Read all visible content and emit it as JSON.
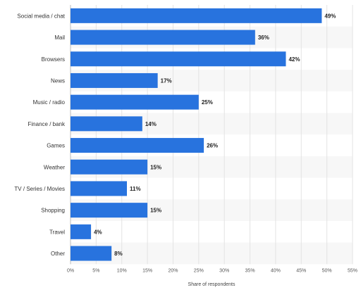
{
  "chart_data": {
    "type": "bar",
    "orientation": "horizontal",
    "categories": [
      "Social media / chat",
      "Mail",
      "Browsers",
      "News",
      "Music / radio",
      "Finance / bank",
      "Games",
      "Weather",
      "TV / Series / Movies",
      "Shopping",
      "Travel",
      "Other"
    ],
    "values": [
      49,
      36,
      42,
      17,
      25,
      14,
      26,
      15,
      11,
      15,
      4,
      8
    ],
    "value_labels": [
      "49%",
      "36%",
      "42%",
      "17%",
      "25%",
      "14%",
      "26%",
      "15%",
      "11%",
      "15%",
      "4%",
      "8%"
    ],
    "xlabel": "Share of respondents",
    "xlim": [
      0,
      55
    ],
    "xticks": [
      0,
      5,
      10,
      15,
      20,
      25,
      30,
      35,
      40,
      45,
      50,
      55
    ],
    "xtick_labels": [
      "0%",
      "5%",
      "10%",
      "15%",
      "20%",
      "25%",
      "30%",
      "35%",
      "40%",
      "45%",
      "50%",
      "55%"
    ],
    "grid": true,
    "bar_color": "#2873de",
    "band_color": "#f7f7f7"
  }
}
